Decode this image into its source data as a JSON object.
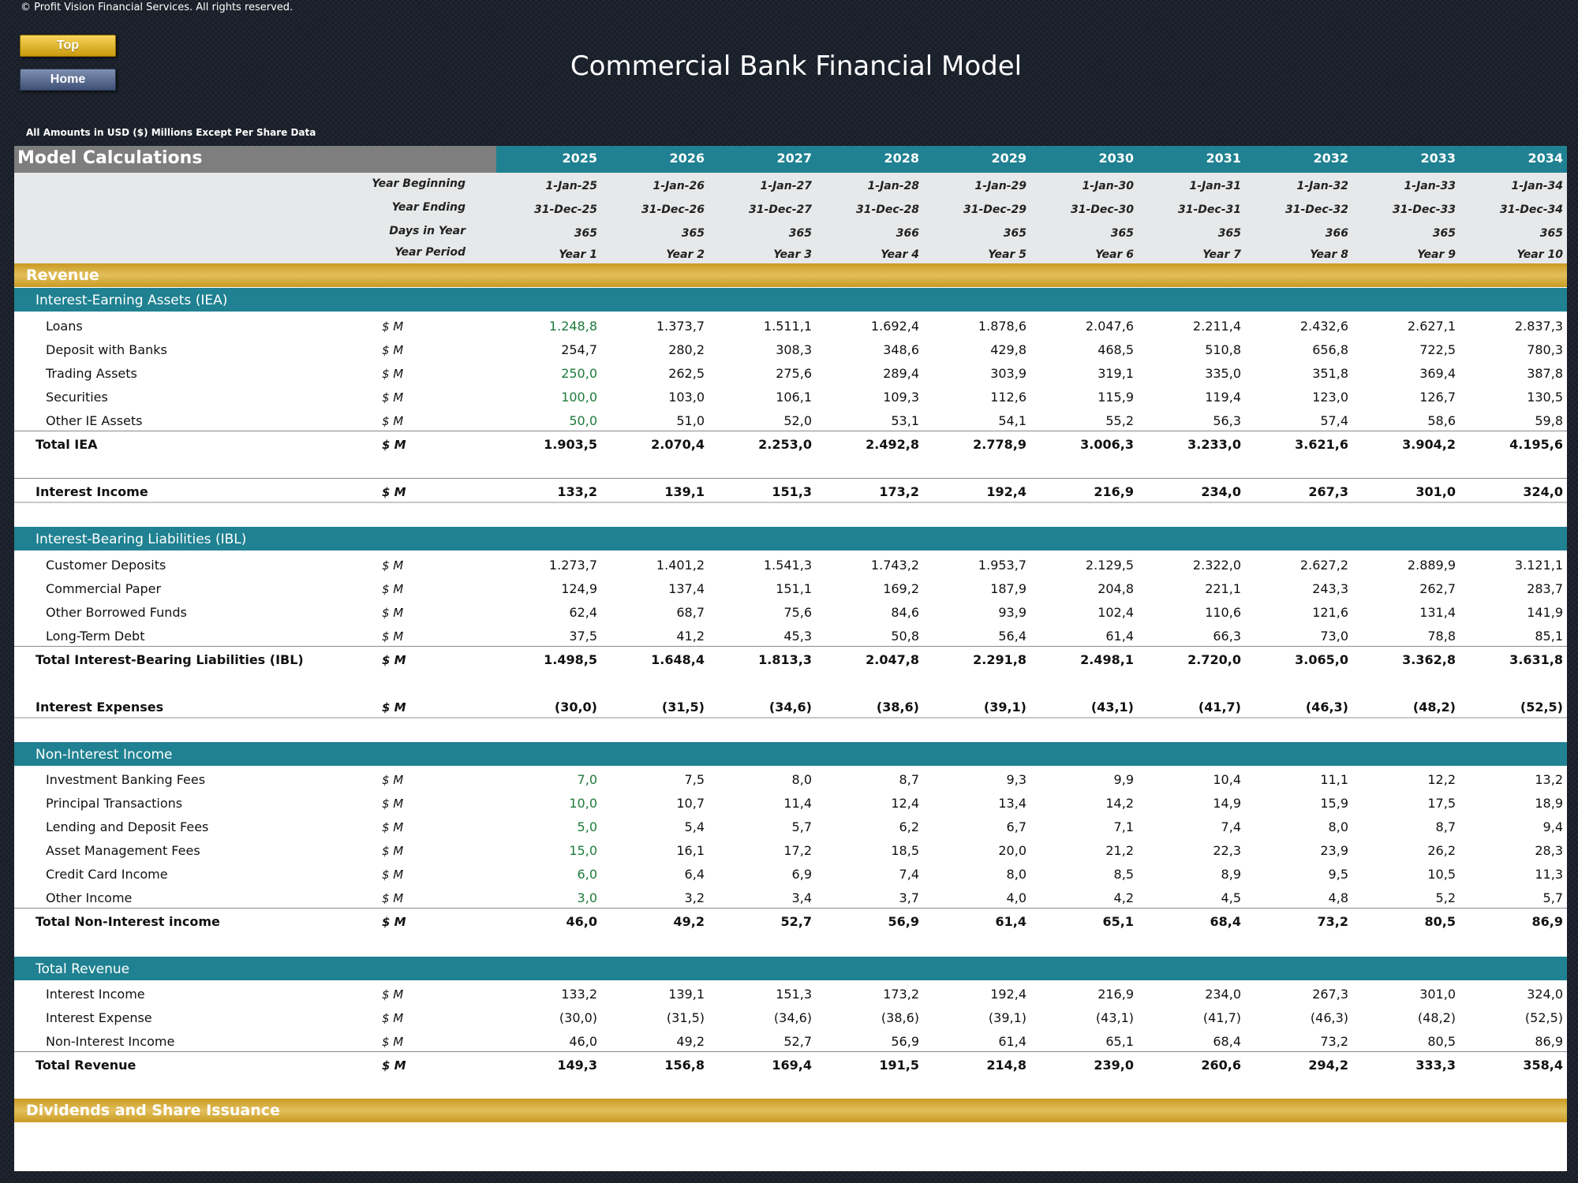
{
  "copyright": "© Profit Vision Financial Services. All rights reserved.",
  "nav": {
    "top_label": "Top",
    "home_label": "Home"
  },
  "title": "Commercial Bank Financial Model",
  "units_note": "All Amounts in  USD ($) Millions Except Per Share Data",
  "sheet": {
    "section_title": "Model Calculations",
    "years": [
      "2025",
      "2026",
      "2027",
      "2028",
      "2029",
      "2030",
      "2031",
      "2032",
      "2033",
      "2034"
    ],
    "header_rows": [
      {
        "label": "Year Beginning",
        "values": [
          "1-Jan-25",
          "1-Jan-26",
          "1-Jan-27",
          "1-Jan-28",
          "1-Jan-29",
          "1-Jan-30",
          "1-Jan-31",
          "1-Jan-32",
          "1-Jan-33",
          "1-Jan-34"
        ]
      },
      {
        "label": "Year Ending",
        "values": [
          "31-Dec-25",
          "31-Dec-26",
          "31-Dec-27",
          "31-Dec-28",
          "31-Dec-29",
          "31-Dec-30",
          "31-Dec-31",
          "31-Dec-32",
          "31-Dec-33",
          "31-Dec-34"
        ]
      },
      {
        "label": "Days in Year",
        "values": [
          "365",
          "365",
          "365",
          "366",
          "365",
          "365",
          "365",
          "366",
          "365",
          "365"
        ]
      },
      {
        "label": "Year Period",
        "values": [
          "Year 1",
          "Year 2",
          "Year 3",
          "Year 4",
          "Year 5",
          "Year 6",
          "Year 7",
          "Year 8",
          "Year 9",
          "Year 10"
        ]
      }
    ],
    "revenue_header": "Revenue",
    "iea": {
      "title": "Interest-Earning Assets (IEA)",
      "rows": [
        {
          "label": "Loans",
          "unit": "$ M",
          "green_first": true,
          "values": [
            "1.248,8",
            "1.373,7",
            "1.511,1",
            "1.692,4",
            "1.878,6",
            "2.047,6",
            "2.211,4",
            "2.432,6",
            "2.627,1",
            "2.837,3"
          ]
        },
        {
          "label": "Deposit with Banks",
          "unit": "$ M",
          "green_first": false,
          "values": [
            "254,7",
            "280,2",
            "308,3",
            "348,6",
            "429,8",
            "468,5",
            "510,8",
            "656,8",
            "722,5",
            "780,3"
          ]
        },
        {
          "label": "Trading Assets",
          "unit": "$ M",
          "green_first": true,
          "values": [
            "250,0",
            "262,5",
            "275,6",
            "289,4",
            "303,9",
            "319,1",
            "335,0",
            "351,8",
            "369,4",
            "387,8"
          ]
        },
        {
          "label": "Securities",
          "unit": "$ M",
          "green_first": true,
          "values": [
            "100,0",
            "103,0",
            "106,1",
            "109,3",
            "112,6",
            "115,9",
            "119,4",
            "123,0",
            "126,7",
            "130,5"
          ]
        },
        {
          "label": "Other IE Assets",
          "unit": "$ M",
          "green_first": true,
          "values": [
            "50,0",
            "51,0",
            "52,0",
            "53,1",
            "54,1",
            "55,2",
            "56,3",
            "57,4",
            "58,6",
            "59,8"
          ]
        }
      ],
      "total": {
        "label": "Total IEA",
        "unit": "$ M",
        "values": [
          "1.903,5",
          "2.070,4",
          "2.253,0",
          "2.492,8",
          "2.778,9",
          "3.006,3",
          "3.233,0",
          "3.621,6",
          "3.904,2",
          "4.195,6"
        ]
      }
    },
    "interest_income": {
      "label": "Interest Income",
      "unit": "$ M",
      "values": [
        "133,2",
        "139,1",
        "151,3",
        "173,2",
        "192,4",
        "216,9",
        "234,0",
        "267,3",
        "301,0",
        "324,0"
      ]
    },
    "ibl": {
      "title": "Interest-Bearing Liabilities (IBL)",
      "rows": [
        {
          "label": "Customer Deposits",
          "unit": "$ M",
          "green_first": false,
          "values": [
            "1.273,7",
            "1.401,2",
            "1.541,3",
            "1.743,2",
            "1.953,7",
            "2.129,5",
            "2.322,0",
            "2.627,2",
            "2.889,9",
            "3.121,1"
          ]
        },
        {
          "label": "Commercial Paper",
          "unit": "$ M",
          "green_first": false,
          "values": [
            "124,9",
            "137,4",
            "151,1",
            "169,2",
            "187,9",
            "204,8",
            "221,1",
            "243,3",
            "262,7",
            "283,7"
          ]
        },
        {
          "label": "Other Borrowed Funds",
          "unit": "$ M",
          "green_first": false,
          "values": [
            "62,4",
            "68,7",
            "75,6",
            "84,6",
            "93,9",
            "102,4",
            "110,6",
            "121,6",
            "131,4",
            "141,9"
          ]
        },
        {
          "label": "Long-Term Debt",
          "unit": "$ M",
          "green_first": false,
          "values": [
            "37,5",
            "41,2",
            "45,3",
            "50,8",
            "56,4",
            "61,4",
            "66,3",
            "73,0",
            "78,8",
            "85,1"
          ]
        }
      ],
      "total": {
        "label": "Total Interest-Bearing Liabilities (IBL)",
        "unit": "$ M",
        "values": [
          "1.498,5",
          "1.648,4",
          "1.813,3",
          "2.047,8",
          "2.291,8",
          "2.498,1",
          "2.720,0",
          "3.065,0",
          "3.362,8",
          "3.631,8"
        ]
      }
    },
    "interest_expenses": {
      "label": "Interest Expenses",
      "unit": "$ M",
      "values": [
        "(30,0)",
        "(31,5)",
        "(34,6)",
        "(38,6)",
        "(39,1)",
        "(43,1)",
        "(41,7)",
        "(46,3)",
        "(48,2)",
        "(52,5)"
      ]
    },
    "nii": {
      "title": "Non-Interest Income",
      "rows": [
        {
          "label": "Investment Banking Fees",
          "unit": "$ M",
          "green_first": true,
          "values": [
            "7,0",
            "7,5",
            "8,0",
            "8,7",
            "9,3",
            "9,9",
            "10,4",
            "11,1",
            "12,2",
            "13,2"
          ]
        },
        {
          "label": "Principal Transactions",
          "unit": "$ M",
          "green_first": true,
          "values": [
            "10,0",
            "10,7",
            "11,4",
            "12,4",
            "13,4",
            "14,2",
            "14,9",
            "15,9",
            "17,5",
            "18,9"
          ]
        },
        {
          "label": "Lending and Deposit Fees",
          "unit": "$ M",
          "green_first": true,
          "values": [
            "5,0",
            "5,4",
            "5,7",
            "6,2",
            "6,7",
            "7,1",
            "7,4",
            "8,0",
            "8,7",
            "9,4"
          ]
        },
        {
          "label": "Asset Management Fees",
          "unit": "$ M",
          "green_first": true,
          "values": [
            "15,0",
            "16,1",
            "17,2",
            "18,5",
            "20,0",
            "21,2",
            "22,3",
            "23,9",
            "26,2",
            "28,3"
          ]
        },
        {
          "label": "Credit Card Income",
          "unit": "$ M",
          "green_first": true,
          "values": [
            "6,0",
            "6,4",
            "6,9",
            "7,4",
            "8,0",
            "8,5",
            "8,9",
            "9,5",
            "10,5",
            "11,3"
          ]
        },
        {
          "label": "Other Income",
          "unit": "$ M",
          "green_first": true,
          "values": [
            "3,0",
            "3,2",
            "3,4",
            "3,7",
            "4,0",
            "4,2",
            "4,5",
            "4,8",
            "5,2",
            "5,7"
          ]
        }
      ],
      "total": {
        "label": "Total Non-Interest income",
        "unit": "$ M",
        "values": [
          "46,0",
          "49,2",
          "52,7",
          "56,9",
          "61,4",
          "65,1",
          "68,4",
          "73,2",
          "80,5",
          "86,9"
        ]
      }
    },
    "total_revenue": {
      "title": "Total Revenue",
      "rows": [
        {
          "label": "Interest Income",
          "unit": "$ M",
          "green_first": false,
          "values": [
            "133,2",
            "139,1",
            "151,3",
            "173,2",
            "192,4",
            "216,9",
            "234,0",
            "267,3",
            "301,0",
            "324,0"
          ]
        },
        {
          "label": "Interest Expense",
          "unit": "$ M",
          "green_first": false,
          "values": [
            "(30,0)",
            "(31,5)",
            "(34,6)",
            "(38,6)",
            "(39,1)",
            "(43,1)",
            "(41,7)",
            "(46,3)",
            "(48,2)",
            "(52,5)"
          ]
        },
        {
          "label": "Non-Interest Income",
          "unit": "$ M",
          "green_first": false,
          "values": [
            "46,0",
            "49,2",
            "52,7",
            "56,9",
            "61,4",
            "65,1",
            "68,4",
            "73,2",
            "80,5",
            "86,9"
          ]
        }
      ],
      "total": {
        "label": "Total Revenue",
        "unit": "$ M",
        "values": [
          "149,3",
          "156,8",
          "169,4",
          "191,5",
          "214,8",
          "239,0",
          "260,6",
          "294,2",
          "333,3",
          "358,4"
        ]
      }
    },
    "dividends_header": "Dividends and Share Issuance"
  }
}
